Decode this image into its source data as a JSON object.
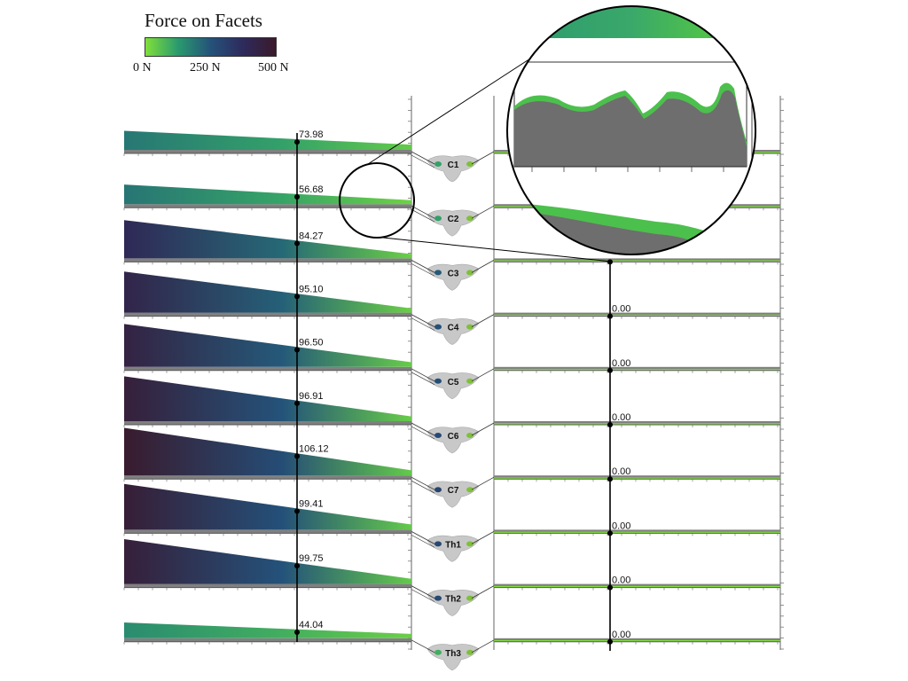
{
  "legend": {
    "title": "Force on Facets",
    "ticks": [
      "0 N",
      "250 N",
      "500 N"
    ],
    "colors": [
      "#7fe03a",
      "#2a9a6e",
      "#24527a",
      "#2e2a5c",
      "#3a1a2a"
    ]
  },
  "chart_data": {
    "type": "area",
    "title": "Force on Facets",
    "colorbar": {
      "label": "Force on Facets",
      "range": [
        0,
        500
      ],
      "unit": "N",
      "ticks": [
        "0 N",
        "250 N",
        "500 N"
      ]
    },
    "left_panel": {
      "marker_label_position": "middle",
      "rows": [
        {
          "level": "C1",
          "value": "73.98",
          "start_force": 185,
          "end_force": 40
        },
        {
          "level": "C2",
          "value": "56.68",
          "start_force": 190,
          "end_force": 25
        },
        {
          "level": "C3",
          "value": "84.27",
          "start_force": 390,
          "end_force": 30
        },
        {
          "level": "C4",
          "value": "95.10",
          "start_force": 420,
          "end_force": 30
        },
        {
          "level": "C5",
          "value": "96.50",
          "start_force": 440,
          "end_force": 35
        },
        {
          "level": "C6",
          "value": "96.91",
          "start_force": 460,
          "end_force": 35
        },
        {
          "level": "C7",
          "value": "106.12",
          "start_force": 490,
          "end_force": 40
        },
        {
          "level": "Th1",
          "value": "99.41",
          "start_force": 470,
          "end_force": 40
        },
        {
          "level": "Th2",
          "value": "99.75",
          "start_force": 460,
          "end_force": 40
        },
        {
          "level": "Th3",
          "value": "44.04",
          "start_force": 150,
          "end_force": 30
        }
      ]
    },
    "right_panel": {
      "rows": [
        {
          "level": "C1",
          "value": ""
        },
        {
          "level": "C2",
          "value": ""
        },
        {
          "level": "C3",
          "value": ""
        },
        {
          "level": "C4",
          "value": "0.00"
        },
        {
          "level": "C5",
          "value": "0.00"
        },
        {
          "level": "C6",
          "value": "0.00"
        },
        {
          "level": "C7",
          "value": "0.00"
        },
        {
          "level": "Th1",
          "value": "0.00"
        },
        {
          "level": "Th2",
          "value": "0.00"
        },
        {
          "level": "Th3",
          "value": "0.00"
        }
      ]
    },
    "vertebrae": [
      "C1",
      "C2",
      "C3",
      "C4",
      "C5",
      "C6",
      "C7",
      "Th1",
      "Th2",
      "Th3"
    ],
    "inset": {
      "description_source": "magnified view of C2 facet force curve",
      "series_colors": [
        "#4cc04c",
        "#6e6e6e"
      ]
    }
  }
}
